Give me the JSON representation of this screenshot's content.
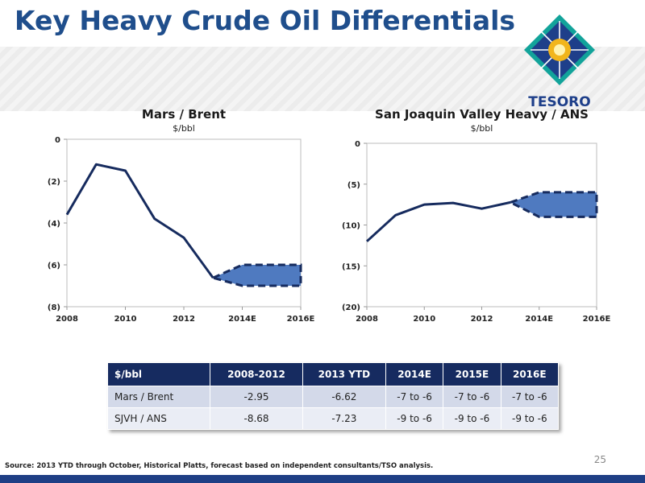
{
  "title": "Key Heavy Crude Oil Differentials",
  "logo": {
    "text": "TESORO",
    "colors": {
      "teal": "#12a39a",
      "navy": "#1e3f8a",
      "gold": "#f2b51b"
    }
  },
  "chart_data": [
    {
      "type": "line",
      "title": "Mars / Brent",
      "unit": "$/bbl",
      "x": [
        2008,
        2009,
        2010,
        2011,
        2012,
        2013
      ],
      "values": [
        -3.6,
        -1.2,
        -1.5,
        -3.8,
        -4.7,
        -6.62
      ],
      "forecast": {
        "x": [
          2014,
          2016
        ],
        "low": -7,
        "high": -6,
        "start": -6.62
      },
      "xticks": [
        "2008",
        "2010",
        "2012",
        "2014E",
        "2016E"
      ],
      "yticks": [
        "0",
        "(2)",
        "(4)",
        "(6)",
        "(8)"
      ],
      "ylim": [
        -8,
        0
      ],
      "xlim": [
        2008,
        2016
      ]
    },
    {
      "type": "line",
      "title": "San Joaquin Valley Heavy / ANS",
      "unit": "$/bbl",
      "x": [
        2008,
        2009,
        2010,
        2011,
        2012,
        2013
      ],
      "values": [
        -12,
        -8.8,
        -7.5,
        -7.3,
        -8,
        -7.23
      ],
      "forecast": {
        "x": [
          2014,
          2016
        ],
        "low": -9,
        "high": -6,
        "start": -7.23
      },
      "xticks": [
        "2008",
        "2010",
        "2012",
        "2014E",
        "2016E"
      ],
      "yticks": [
        "0",
        "(5)",
        "(10)",
        "(15)",
        "(20)"
      ],
      "ylim": [
        -20,
        0
      ],
      "xlim": [
        2008,
        2016
      ]
    }
  ],
  "table": {
    "headers": [
      "$/bbl",
      "2008-2012",
      "2013 YTD",
      "2014E",
      "2015E",
      "2016E"
    ],
    "rows": [
      [
        "Mars / Brent",
        "-2.95",
        "-6.62",
        "-7 to -6",
        "-7 to -6",
        "-7 to -6"
      ],
      [
        "SJVH / ANS",
        "-8.68",
        "-7.23",
        "-9 to -6",
        "-9 to -6",
        "-9 to -6"
      ]
    ]
  },
  "page_number": "25",
  "source": "Source: 2013 YTD through October, Historical Platts, forecast based on independent consultants/TSO analysis.",
  "colors": {
    "title": "#1f4e8c",
    "line": "#162b5e",
    "forecast_fill": "#4f7ac0",
    "table_header": "#162b60",
    "footer_bar": "#1f3f85"
  }
}
